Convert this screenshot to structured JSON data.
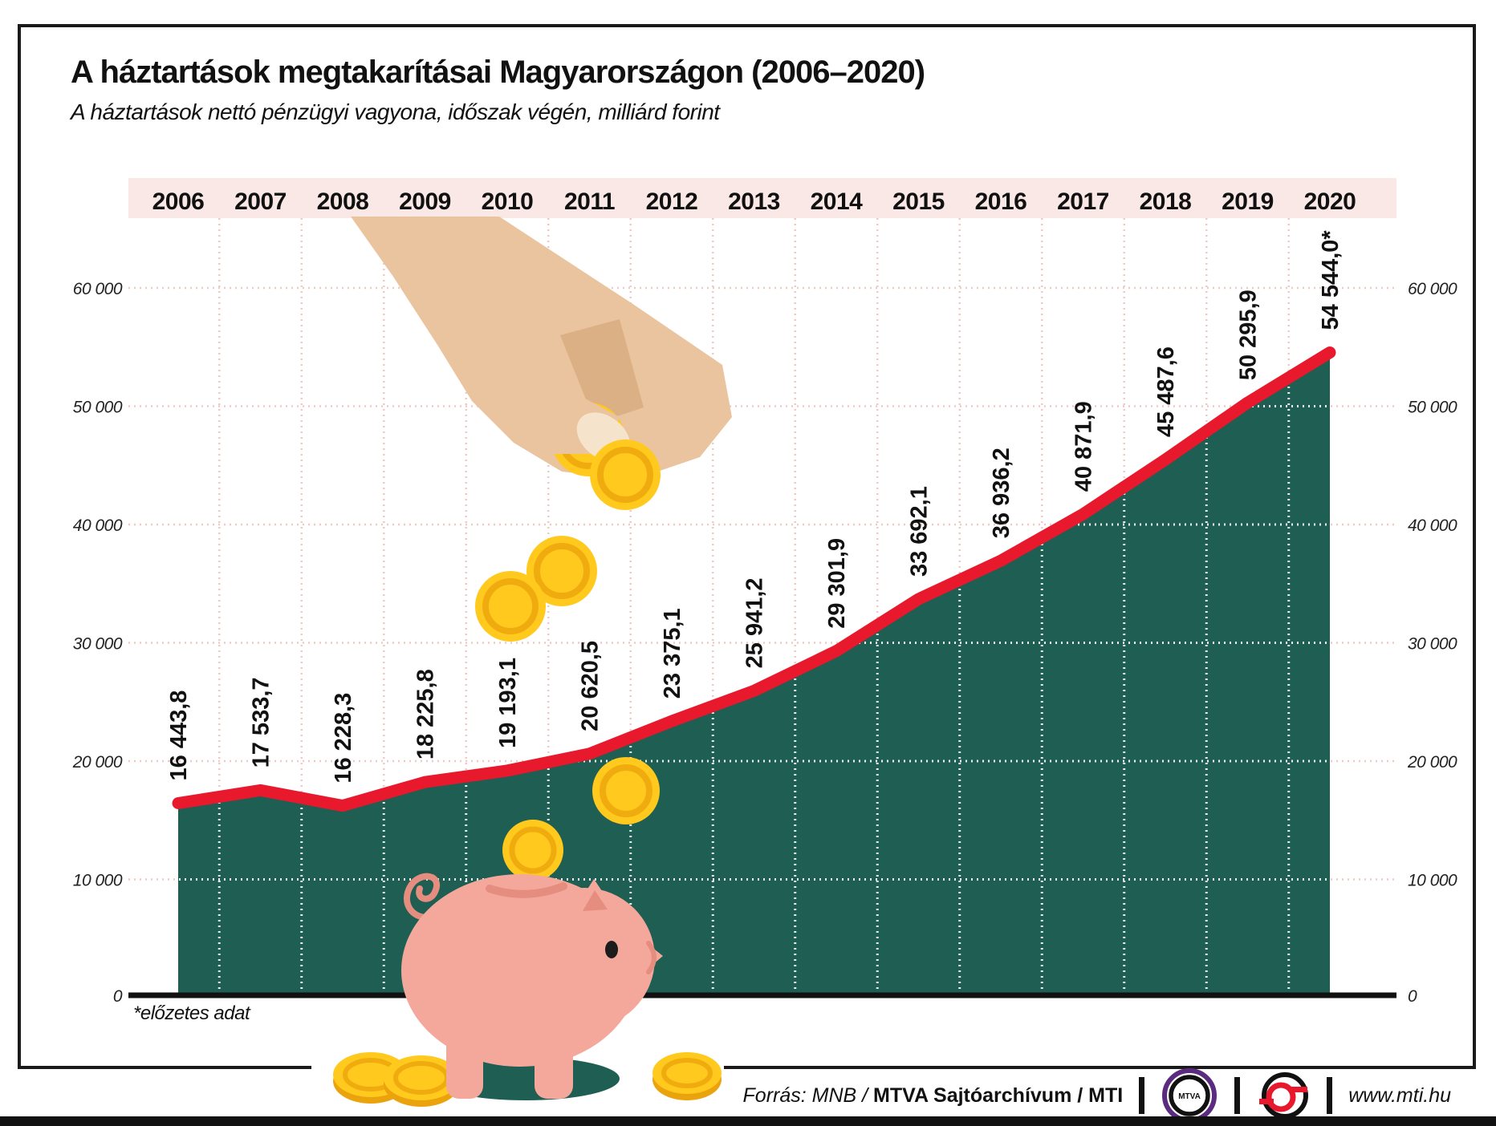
{
  "title": "A háztartások megtakarításai Magyarországon (2006–2020)",
  "subtitle": "A háztartások nettó pénzügyi vagyona, időszak végén, milliárd forint",
  "footnote": "*előzetes adat",
  "footer": {
    "source_prefix": "Forrás: MNB / ",
    "source_bold": "MTVA Sajtóarchívum",
    "source_mti": " / MTI",
    "mtva_text": "MTVA",
    "website": "www.mti.hu"
  },
  "colors": {
    "accent_red": "#E8192C",
    "area_teal": "#1E5E53",
    "band_pink": "#FAE8E6",
    "grid_pink": "#EFC9C5",
    "coin_gold": "#FFC91E",
    "coin_ring": "#F0AC0F",
    "coin_base": "#EBA30D",
    "skin": "#EAC49E",
    "skin_shadow": "#DBB084",
    "nail": "#F5E4CB",
    "pig_pink": "#F4A89B",
    "pig_dark": "#E58D7F",
    "mtva_purple": "#5B2B7F",
    "axis_black": "#111111"
  },
  "chart_data": {
    "type": "area",
    "title": "A háztartások megtakarításai Magyarországon (2006–2020)",
    "subtitle": "A háztartások nettó pénzügyi vagyona, időszak végén, milliárd forint",
    "categories": [
      "2006",
      "2007",
      "2008",
      "2009",
      "2010",
      "2011",
      "2012",
      "2013",
      "2014",
      "2015",
      "2016",
      "2017",
      "2018",
      "2019",
      "2020"
    ],
    "values": [
      16443.8,
      17533.7,
      16228.3,
      18225.8,
      19193.1,
      20620.5,
      23375.1,
      25941.2,
      29301.9,
      33692.1,
      36936.2,
      40871.9,
      45487.6,
      50295.9,
      54544.0
    ],
    "value_labels": [
      "16 443,8",
      "17 533,7",
      "16 228,3",
      "18 225,8",
      "19 193,1",
      "20 620,5",
      "23 375,1",
      "25 941,2",
      "29 301,9",
      "33 692,1",
      "36 936,2",
      "40 871,9",
      "45 487,6",
      "50 295,9",
      "54 544,0*"
    ],
    "y_ticks": [
      {
        "value": 0,
        "label": "0"
      },
      {
        "value": 10000,
        "label": "10 000"
      },
      {
        "value": 20000,
        "label": "20 000"
      },
      {
        "value": 30000,
        "label": "30 000"
      },
      {
        "value": 40000,
        "label": "40 000"
      },
      {
        "value": 50000,
        "label": "50 000"
      },
      {
        "value": 60000,
        "label": "60 000"
      }
    ],
    "ylim": [
      0,
      65000
    ],
    "grid": true,
    "legend": "none",
    "unit": "milliárd forint",
    "note": "2020 érték előzetes adat"
  }
}
